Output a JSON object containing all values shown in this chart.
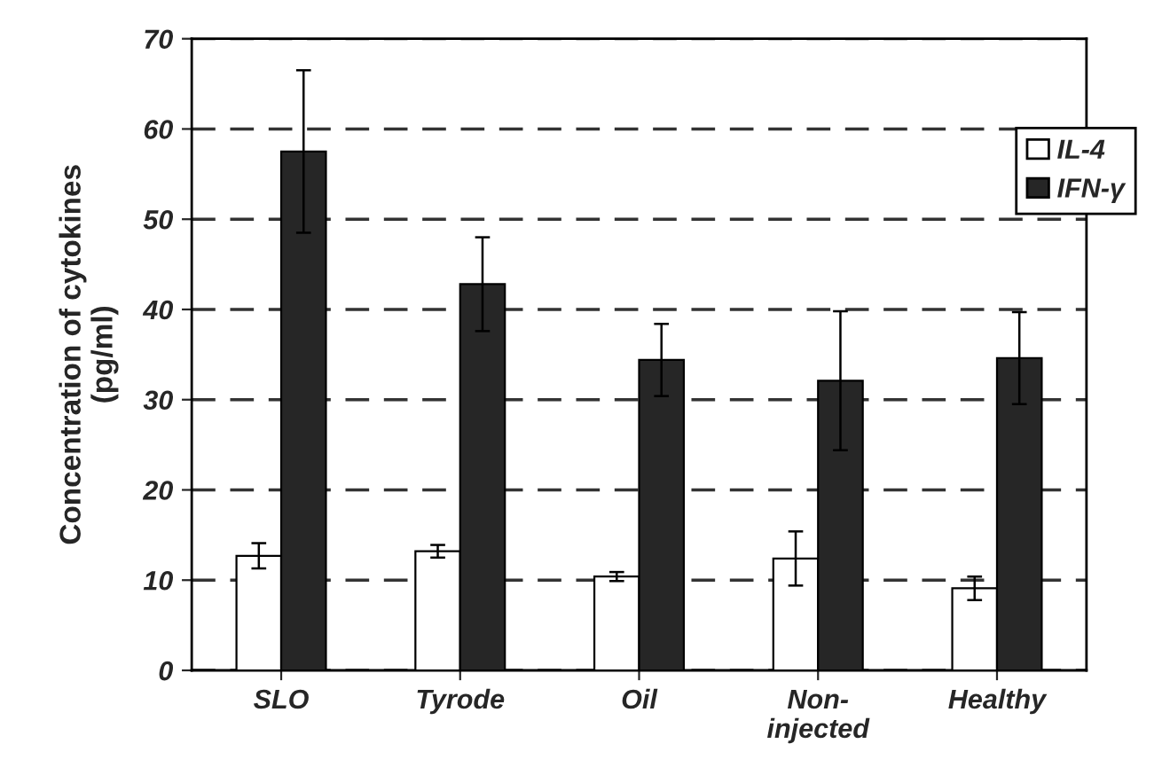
{
  "chart_data": {
    "type": "bar",
    "ylabel": "Concentration of cytokines\n(pg/ml)",
    "categories": [
      "SLO",
      "Tyrode",
      "Oil",
      "Non-\ninjected",
      "Healthy"
    ],
    "series": [
      {
        "name": "IL-4",
        "color": "#ffffff",
        "values": [
          12.7,
          13.2,
          10.4,
          12.4,
          9.1
        ],
        "errors": [
          1.4,
          0.7,
          0.5,
          3,
          1.3
        ]
      },
      {
        "name": "IFN-γ",
        "color": "#262626",
        "values": [
          57.5,
          42.8,
          34.4,
          32.1,
          34.6
        ],
        "errors": [
          9,
          5.2,
          4,
          7.7,
          5.1
        ]
      }
    ],
    "ylim": [
      0,
      70
    ],
    "yticks": [
      0,
      10,
      20,
      30,
      40,
      50,
      60,
      70
    ],
    "grid": "y",
    "legend": "top right"
  }
}
